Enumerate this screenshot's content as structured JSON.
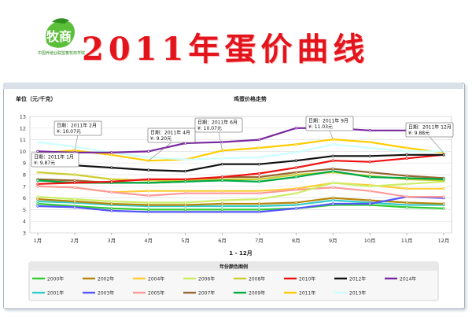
{
  "header": {
    "title": "2011年蛋价曲线",
    "logo_text": "牧商",
    "logo_subtitle": "中国养殖业联盟畜牧商学院"
  },
  "colors": {
    "title": "#e3141c",
    "logo": "#3aa52a"
  },
  "chart_data": {
    "type": "line",
    "title": "鸡蛋价格走势",
    "ylabel": "单位（元/千克）",
    "xlabel": "1 - 12月",
    "categories": [
      "1月",
      "2月",
      "3月",
      "4月",
      "5月",
      "6月",
      "7月",
      "8月",
      "9月",
      "10月",
      "11月",
      "12月"
    ],
    "ylim": [
      3,
      13
    ],
    "yticks": [
      3,
      4,
      5,
      6,
      7,
      8,
      9,
      10,
      11,
      12,
      13
    ],
    "grid": true,
    "legend_title": "年份颜色图例",
    "legend_position": "bottom",
    "series": [
      {
        "name": "2000年",
        "color": "#33cc33",
        "values": [
          5.5,
          5.3,
          5.1,
          5.0,
          5.0,
          5.0,
          5.0,
          5.1,
          5.4,
          5.4,
          5.2,
          5.1
        ]
      },
      {
        "name": "2001年",
        "color": "#33cccc",
        "values": [
          5.7,
          5.6,
          5.4,
          5.3,
          5.3,
          5.3,
          5.3,
          5.4,
          5.8,
          5.6,
          5.4,
          5.4
        ]
      },
      {
        "name": "2002年",
        "color": "#b8860b",
        "values": [
          5.9,
          5.7,
          5.5,
          5.4,
          5.4,
          5.5,
          5.5,
          5.6,
          6.0,
          5.8,
          5.6,
          5.5
        ]
      },
      {
        "name": "2003年",
        "color": "#5555ff",
        "values": [
          5.3,
          5.2,
          4.9,
          4.8,
          4.8,
          4.8,
          4.8,
          5.1,
          5.5,
          5.5,
          6.1,
          6.0
        ]
      },
      {
        "name": "2004年",
        "color": "#ffcc33",
        "values": [
          7.0,
          6.9,
          6.5,
          6.6,
          6.6,
          6.6,
          6.6,
          6.8,
          7.3,
          7.1,
          6.8,
          6.8
        ]
      },
      {
        "name": "2005年",
        "color": "#ff9999",
        "values": [
          7.0,
          6.9,
          6.5,
          6.2,
          6.4,
          6.4,
          6.4,
          6.7,
          6.9,
          6.6,
          6.1,
          6.1
        ]
      },
      {
        "name": "2006年",
        "color": "#ccee66",
        "values": [
          6.1,
          5.9,
          5.7,
          5.6,
          5.6,
          5.8,
          5.9,
          6.4,
          7.3,
          7.0,
          7.2,
          7.4
        ]
      },
      {
        "name": "2007年",
        "color": "#996633",
        "values": [
          7.6,
          7.5,
          7.3,
          7.3,
          7.4,
          7.8,
          7.8,
          8.2,
          8.5,
          8.2,
          7.9,
          7.7
        ]
      },
      {
        "name": "2008年",
        "color": "#cccc33",
        "values": [
          8.2,
          8.0,
          7.6,
          7.5,
          7.5,
          7.6,
          7.6,
          8.0,
          8.2,
          7.9,
          7.6,
          7.5
        ]
      },
      {
        "name": "2009年",
        "color": "#00aa44",
        "values": [
          7.5,
          7.3,
          7.3,
          7.3,
          7.4,
          7.5,
          7.4,
          7.8,
          8.3,
          7.8,
          7.7,
          7.6
        ]
      },
      {
        "name": "2010年",
        "color": "#ee1111",
        "values": [
          7.2,
          7.3,
          7.4,
          7.6,
          7.6,
          7.8,
          8.1,
          8.6,
          9.2,
          9.1,
          9.4,
          9.7
        ]
      },
      {
        "name": "2011年",
        "color": "#ffcc00",
        "values": [
          9.87,
          10.07,
          9.7,
          9.2,
          9.3,
          10.07,
          10.3,
          10.6,
          11.03,
          10.8,
          10.3,
          9.88
        ]
      },
      {
        "name": "2012年",
        "color": "#111111",
        "values": [
          9.2,
          8.8,
          8.6,
          8.4,
          8.3,
          8.9,
          8.9,
          9.2,
          9.6,
          9.6,
          9.7,
          9.7
        ]
      },
      {
        "name": "2013年",
        "color": "#ccffff",
        "values": [
          10.8,
          10.4,
          9.9,
          9.5,
          9.3,
          9.4,
          9.5,
          9.9,
          10.6,
          10.3,
          10.0,
          10.0
        ]
      },
      {
        "name": "2014年",
        "color": "#7a2aa0",
        "values": [
          10.0,
          9.9,
          9.9,
          10.0,
          10.7,
          10.8,
          11.0,
          12.0,
          12.0,
          11.8,
          11.8,
          11.8
        ]
      }
    ],
    "annotations": [
      {
        "label": "日期：2011年 1月",
        "value_text": "¥: 9.87元",
        "month_index": 0
      },
      {
        "label": "日期：2011年 2月",
        "value_text": "¥: 10.07元",
        "month_index": 1
      },
      {
        "label": "日期：2011年 4月",
        "value_text": "¥: 9.20元",
        "month_index": 3
      },
      {
        "label": "日期：2011年 6月",
        "value_text": "¥: 10.07元",
        "month_index": 5
      },
      {
        "label": "日期：2011年 9月",
        "value_text": "¥: 11.03元",
        "month_index": 8
      },
      {
        "label": "日期：2011年 12月",
        "value_text": "¥: 9.88元",
        "month_index": 11
      }
    ]
  }
}
